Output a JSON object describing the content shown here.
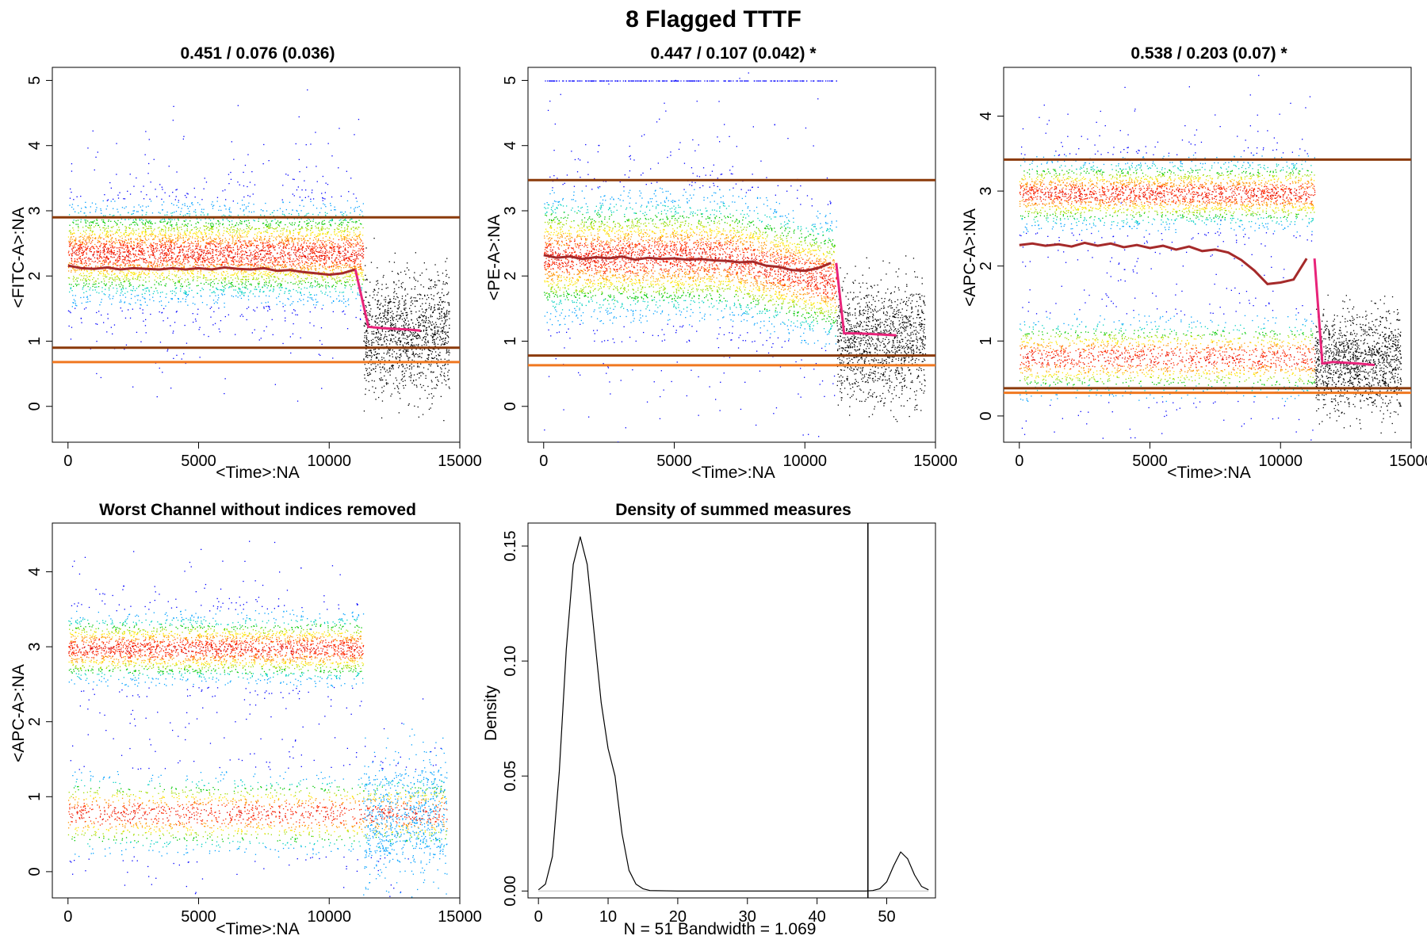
{
  "figure": {
    "title": "8 Flagged TTTF"
  },
  "colors": {
    "density_ramp": [
      "#0000ff",
      "#00a0ff",
      "#00d0c0",
      "#00c800",
      "#a0dc00",
      "#ffe600",
      "#ff9600",
      "#ff2800",
      "#dc0000"
    ],
    "removed_points": "#000000",
    "median_line": "#a52a2a",
    "median_line_removed": "#e8237a",
    "upper_limit": "#8b3a0a",
    "lower_limit_dark": "#8b3a0a",
    "lower_limit_light": "#f07820"
  },
  "chart_data": [
    {
      "type": "scatter",
      "id": "fitc",
      "title": "0.451 / 0.076 (0.036)",
      "xlabel": "<Time>:NA",
      "ylabel": "<FITC-A>:NA",
      "xlim": [
        -600,
        15000
      ],
      "ylim": [
        -0.55,
        5.2
      ],
      "x_ticks": [
        0,
        5000,
        10000,
        15000
      ],
      "y_ticks": [
        0,
        1,
        2,
        3,
        4,
        5
      ],
      "cutoff_time": 11300,
      "h_lines": [
        {
          "y": 2.9,
          "color": "upper_limit"
        },
        {
          "y": 0.9,
          "color": "lower_limit_dark"
        },
        {
          "y": 0.68,
          "color": "lower_limit_light"
        }
      ],
      "clusters": [
        {
          "center": 2.35,
          "spread": 0.35,
          "weight": 1.0,
          "x_end": 11300
        }
      ],
      "kept_median": {
        "x": [
          0,
          500,
          1000,
          1500,
          2000,
          2500,
          3000,
          3500,
          4000,
          4500,
          5000,
          5500,
          6000,
          6500,
          7000,
          7500,
          8000,
          8500,
          9000,
          9500,
          10000,
          10500,
          11000
        ],
        "y": [
          2.16,
          2.12,
          2.11,
          2.13,
          2.1,
          2.12,
          2.11,
          2.1,
          2.12,
          2.1,
          2.12,
          2.1,
          2.13,
          2.11,
          2.1,
          2.12,
          2.08,
          2.09,
          2.06,
          2.04,
          2.02,
          2.04,
          2.1
        ]
      },
      "removed_median": {
        "x": [
          11000,
          11500,
          12000,
          12500,
          13000,
          13500
        ],
        "y": [
          2.1,
          1.22,
          1.2,
          1.19,
          1.18,
          1.16
        ]
      },
      "removed_level": {
        "center": 1.1,
        "spread": 0.45
      }
    },
    {
      "type": "scatter",
      "id": "pe",
      "title": "0.447 / 0.107 (0.042) *",
      "xlabel": "<Time>:NA",
      "ylabel": "<PE-A>:NA",
      "xlim": [
        -600,
        15000
      ],
      "ylim": [
        -0.55,
        5.2
      ],
      "x_ticks": [
        0,
        5000,
        10000,
        15000
      ],
      "y_ticks": [
        0,
        1,
        2,
        3,
        4,
        5
      ],
      "cutoff_time": 11200,
      "h_lines": [
        {
          "y": 3.47,
          "color": "upper_limit"
        },
        {
          "y": 0.78,
          "color": "lower_limit_dark"
        },
        {
          "y": 0.63,
          "color": "lower_limit_light"
        }
      ],
      "clusters": [
        {
          "center": 2.3,
          "spread": 0.45,
          "weight": 1.0,
          "x_end": 11200
        }
      ],
      "saturated_line": {
        "y": 5.0,
        "x_start": 0,
        "x_end": 11200
      },
      "kept_median": {
        "x": [
          0,
          500,
          1000,
          1500,
          2000,
          2500,
          3000,
          3500,
          4000,
          4500,
          5000,
          5500,
          6000,
          6500,
          7000,
          7500,
          8000,
          8500,
          9000,
          9500,
          10000,
          10500,
          11000
        ],
        "y": [
          2.32,
          2.28,
          2.3,
          2.26,
          2.29,
          2.27,
          2.3,
          2.25,
          2.28,
          2.26,
          2.27,
          2.25,
          2.26,
          2.24,
          2.23,
          2.21,
          2.22,
          2.16,
          2.14,
          2.09,
          2.08,
          2.12,
          2.2
        ]
      },
      "removed_median": {
        "x": [
          11200,
          11500,
          12000,
          12500,
          13000,
          13500
        ],
        "y": [
          2.2,
          1.12,
          1.12,
          1.11,
          1.1,
          1.09
        ]
      },
      "removed_level": {
        "center": 1.0,
        "spread": 0.45
      }
    },
    {
      "type": "scatter",
      "id": "apc",
      "title": "0.538 / 0.203 (0.07) *",
      "xlabel": "<Time>:NA",
      "ylabel": "<APC-A>:NA",
      "xlim": [
        -600,
        15000
      ],
      "ylim": [
        -0.35,
        4.65
      ],
      "x_ticks": [
        0,
        5000,
        10000,
        15000
      ],
      "y_ticks": [
        0,
        1,
        2,
        3,
        4
      ],
      "cutoff_time": 11300,
      "h_lines": [
        {
          "y": 3.42,
          "color": "upper_limit"
        },
        {
          "y": 0.37,
          "color": "lower_limit_dark"
        },
        {
          "y": 0.31,
          "color": "lower_limit_light"
        }
      ],
      "clusters": [
        {
          "center": 2.97,
          "spread": 0.22,
          "weight": 0.6,
          "x_end": 11300
        },
        {
          "center": 0.78,
          "spread": 0.25,
          "weight": 0.4,
          "x_end": 11300
        }
      ],
      "kept_median": {
        "x": [
          0,
          500,
          1000,
          1500,
          2000,
          2500,
          3000,
          3500,
          4000,
          4500,
          5000,
          5500,
          6000,
          6500,
          7000,
          7500,
          8000,
          8500,
          9000,
          9500,
          10000,
          10500,
          11000
        ],
        "y": [
          2.28,
          2.3,
          2.27,
          2.29,
          2.26,
          2.31,
          2.27,
          2.3,
          2.25,
          2.28,
          2.24,
          2.27,
          2.22,
          2.26,
          2.2,
          2.22,
          2.18,
          2.08,
          1.94,
          1.76,
          1.78,
          1.82,
          2.1
        ]
      },
      "removed_median": {
        "x": [
          11300,
          11600,
          12000,
          12500,
          13000,
          13600
        ],
        "y": [
          2.1,
          0.7,
          0.72,
          0.71,
          0.7,
          0.68
        ]
      },
      "removed_level": {
        "center": 0.72,
        "spread": 0.32
      }
    },
    {
      "type": "scatter",
      "id": "worst",
      "title": "Worst Channel without indices removed",
      "xlabel": "<Time>:NA",
      "ylabel": "<APC-A>:NA",
      "xlim": [
        -600,
        15000
      ],
      "ylim": [
        -0.35,
        4.65
      ],
      "x_ticks": [
        0,
        5000,
        10000,
        15000
      ],
      "y_ticks": [
        0,
        1,
        2,
        3,
        4
      ],
      "cutoff_time": 11300,
      "clusters": [
        {
          "center": 2.98,
          "spread": 0.22,
          "weight": 0.6,
          "x_end": 11300
        },
        {
          "center": 0.78,
          "spread": 0.25,
          "weight": 0.4,
          "x_end": 14500
        }
      ]
    },
    {
      "type": "line",
      "id": "density",
      "title": "Density of summed measures",
      "xlabel": "N = 51   Bandwidth = 1.069",
      "ylabel": "Density",
      "xlim": [
        -1.5,
        57
      ],
      "ylim": [
        -0.003,
        0.16
      ],
      "x_ticks": [
        0,
        10,
        20,
        30,
        40,
        50
      ],
      "y_ticks": [
        0.0,
        0.05,
        0.1,
        0.15
      ],
      "y_tick_labels": [
        "0.00",
        "0.05",
        "0.10",
        "0.15"
      ],
      "vline_x": 47.3,
      "x": [
        0,
        1,
        2,
        3,
        4,
        5,
        6,
        7,
        8,
        9,
        10,
        11,
        12,
        13,
        14,
        15,
        16,
        20,
        30,
        40,
        47,
        48,
        49,
        50,
        51,
        52,
        53,
        54,
        55,
        56
      ],
      "y": [
        0.0005,
        0.003,
        0.015,
        0.052,
        0.105,
        0.142,
        0.154,
        0.142,
        0.112,
        0.082,
        0.062,
        0.05,
        0.025,
        0.009,
        0.003,
        0.001,
        0.0002,
        0.0,
        0.0,
        0.0,
        0.0,
        0.0002,
        0.001,
        0.004,
        0.011,
        0.017,
        0.014,
        0.007,
        0.002,
        0.0005
      ]
    }
  ]
}
